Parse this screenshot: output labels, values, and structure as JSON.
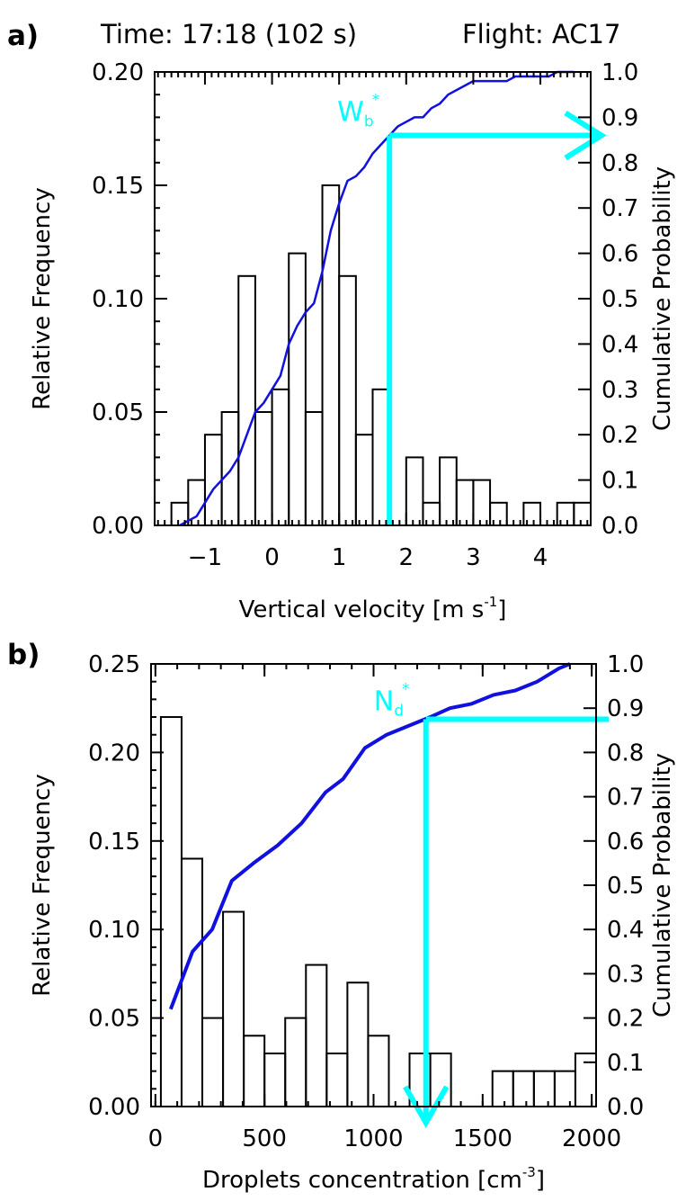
{
  "header": {
    "time_text": "Time: 17:18 (102 s)",
    "flight_text": "Flight: AC17"
  },
  "colors": {
    "cdf": "#1010e0",
    "marker": "#00ffff",
    "bars": "#000000"
  },
  "chart_data": [
    {
      "panel_label": "a)",
      "type": "bar",
      "xlabel": "Vertical velocity [m s",
      "xlabel_exponent": "-1",
      "xlabel_suffix": "]",
      "ylabel": "Relative Frequency",
      "y2label": "Cumulative Probability",
      "xlim": [
        -1.75,
        4.75
      ],
      "ylim": [
        0.0,
        0.2
      ],
      "y2lim": [
        0.0,
        1.0
      ],
      "x_ticks": [
        -1,
        0,
        1,
        2,
        3,
        4
      ],
      "x_tick_labels": [
        "−1",
        "0",
        "1",
        "2",
        "3",
        "4"
      ],
      "y_ticks": [
        0.0,
        0.05,
        0.1,
        0.15,
        0.2
      ],
      "y_tick_labels": [
        "0.00",
        "0.05",
        "0.10",
        "0.15",
        "0.20"
      ],
      "y2_ticks": [
        0.0,
        0.1,
        0.2,
        0.3,
        0.4,
        0.5,
        0.6,
        0.7,
        0.8,
        0.9,
        1.0
      ],
      "y2_tick_labels": [
        "0.0",
        "0.1",
        "0.2",
        "0.3",
        "0.4",
        "0.5",
        "0.6",
        "0.7",
        "0.8",
        "0.9",
        "1.0"
      ],
      "x_minor_step": 0.1,
      "bin_width": 0.25,
      "bin_edges_start": -1.5,
      "values": [
        0.01,
        0.02,
        0.04,
        0.05,
        0.11,
        0.05,
        0.06,
        0.12,
        0.05,
        0.15,
        0.11,
        0.04,
        0.06,
        0.0,
        0.03,
        0.01,
        0.03,
        0.02,
        0.02,
        0.01,
        0.0,
        0.01,
        0.0,
        0.01,
        0.01
      ],
      "cumulative": {
        "x": [
          -1.375,
          -1.25,
          -1.125,
          -1.0,
          -0.875,
          -0.75,
          -0.625,
          -0.5,
          -0.375,
          -0.25,
          -0.125,
          0.0,
          0.125,
          0.25,
          0.375,
          0.5,
          0.625,
          0.75,
          0.875,
          1.0,
          1.125,
          1.25,
          1.375,
          1.5,
          1.625,
          1.75,
          1.875,
          2.0,
          2.125,
          2.25,
          2.375,
          2.5,
          2.625,
          2.75,
          2.875,
          3.0,
          3.125,
          3.25,
          3.375,
          3.5,
          3.625,
          3.75,
          3.875,
          4.0,
          4.125,
          4.25,
          4.375,
          4.5
        ],
        "y": [
          0.0,
          0.01,
          0.02,
          0.05,
          0.08,
          0.1,
          0.12,
          0.15,
          0.2,
          0.25,
          0.27,
          0.3,
          0.33,
          0.4,
          0.44,
          0.47,
          0.49,
          0.56,
          0.65,
          0.71,
          0.76,
          0.77,
          0.79,
          0.82,
          0.84,
          0.86,
          0.88,
          0.89,
          0.9,
          0.9,
          0.92,
          0.93,
          0.95,
          0.96,
          0.97,
          0.98,
          0.98,
          0.98,
          0.98,
          0.98,
          0.99,
          0.99,
          0.99,
          0.99,
          0.99,
          1.0,
          1.0,
          1.0
        ]
      },
      "marker": {
        "label": "W",
        "label_subscript": "b",
        "label_superscript": "*",
        "x": 1.75,
        "probability": 0.86,
        "arrow_direction": "right"
      }
    },
    {
      "panel_label": "b)",
      "type": "bar",
      "xlabel": "Droplets concentration [cm",
      "xlabel_exponent": "-3",
      "xlabel_suffix": "]",
      "ylabel": "Relative Frequency",
      "y2label": "Cumulative Probability",
      "xlim": [
        -20,
        2020
      ],
      "ylim": [
        0.0,
        0.25
      ],
      "y2lim": [
        0.0,
        1.0
      ],
      "x_ticks": [
        0,
        500,
        1000,
        1500,
        2000
      ],
      "x_tick_labels": [
        "0",
        "500",
        "1000",
        "1500",
        "2000"
      ],
      "y_ticks": [
        0.0,
        0.05,
        0.1,
        0.15,
        0.2,
        0.25
      ],
      "y_tick_labels": [
        "0.00",
        "0.05",
        "0.10",
        "0.15",
        "0.20",
        "0.25"
      ],
      "y2_ticks": [
        0.0,
        0.1,
        0.2,
        0.3,
        0.4,
        0.5,
        0.6,
        0.7,
        0.8,
        0.9,
        1.0
      ],
      "y2_tick_labels": [
        "0.0",
        "0.1",
        "0.2",
        "0.3",
        "0.4",
        "0.5",
        "0.6",
        "0.7",
        "0.8",
        "0.9",
        "1.0"
      ],
      "x_minor_step": 100,
      "bin_width": 95,
      "bin_edges_start": 25,
      "values": [
        0.22,
        0.14,
        0.05,
        0.11,
        0.04,
        0.03,
        0.05,
        0.08,
        0.03,
        0.07,
        0.04,
        0.0,
        0.03,
        0.03,
        0.0,
        0.0,
        0.02,
        0.02,
        0.02,
        0.02,
        0.03
      ],
      "cumulative": {
        "x": [
          70,
          170,
          260,
          350,
          450,
          560,
          670,
          780,
          860,
          960,
          1060,
          1160,
          1260,
          1350,
          1450,
          1550,
          1650,
          1750,
          1850,
          1900
        ],
        "y": [
          0.22,
          0.35,
          0.4,
          0.51,
          0.55,
          0.59,
          0.64,
          0.71,
          0.74,
          0.81,
          0.84,
          0.86,
          0.88,
          0.9,
          0.91,
          0.93,
          0.94,
          0.96,
          0.99,
          1.0
        ]
      },
      "marker": {
        "label": "N",
        "label_subscript": "d",
        "label_superscript": "*",
        "x": 1240,
        "probability": 0.875,
        "arrow_direction": "down"
      }
    }
  ]
}
